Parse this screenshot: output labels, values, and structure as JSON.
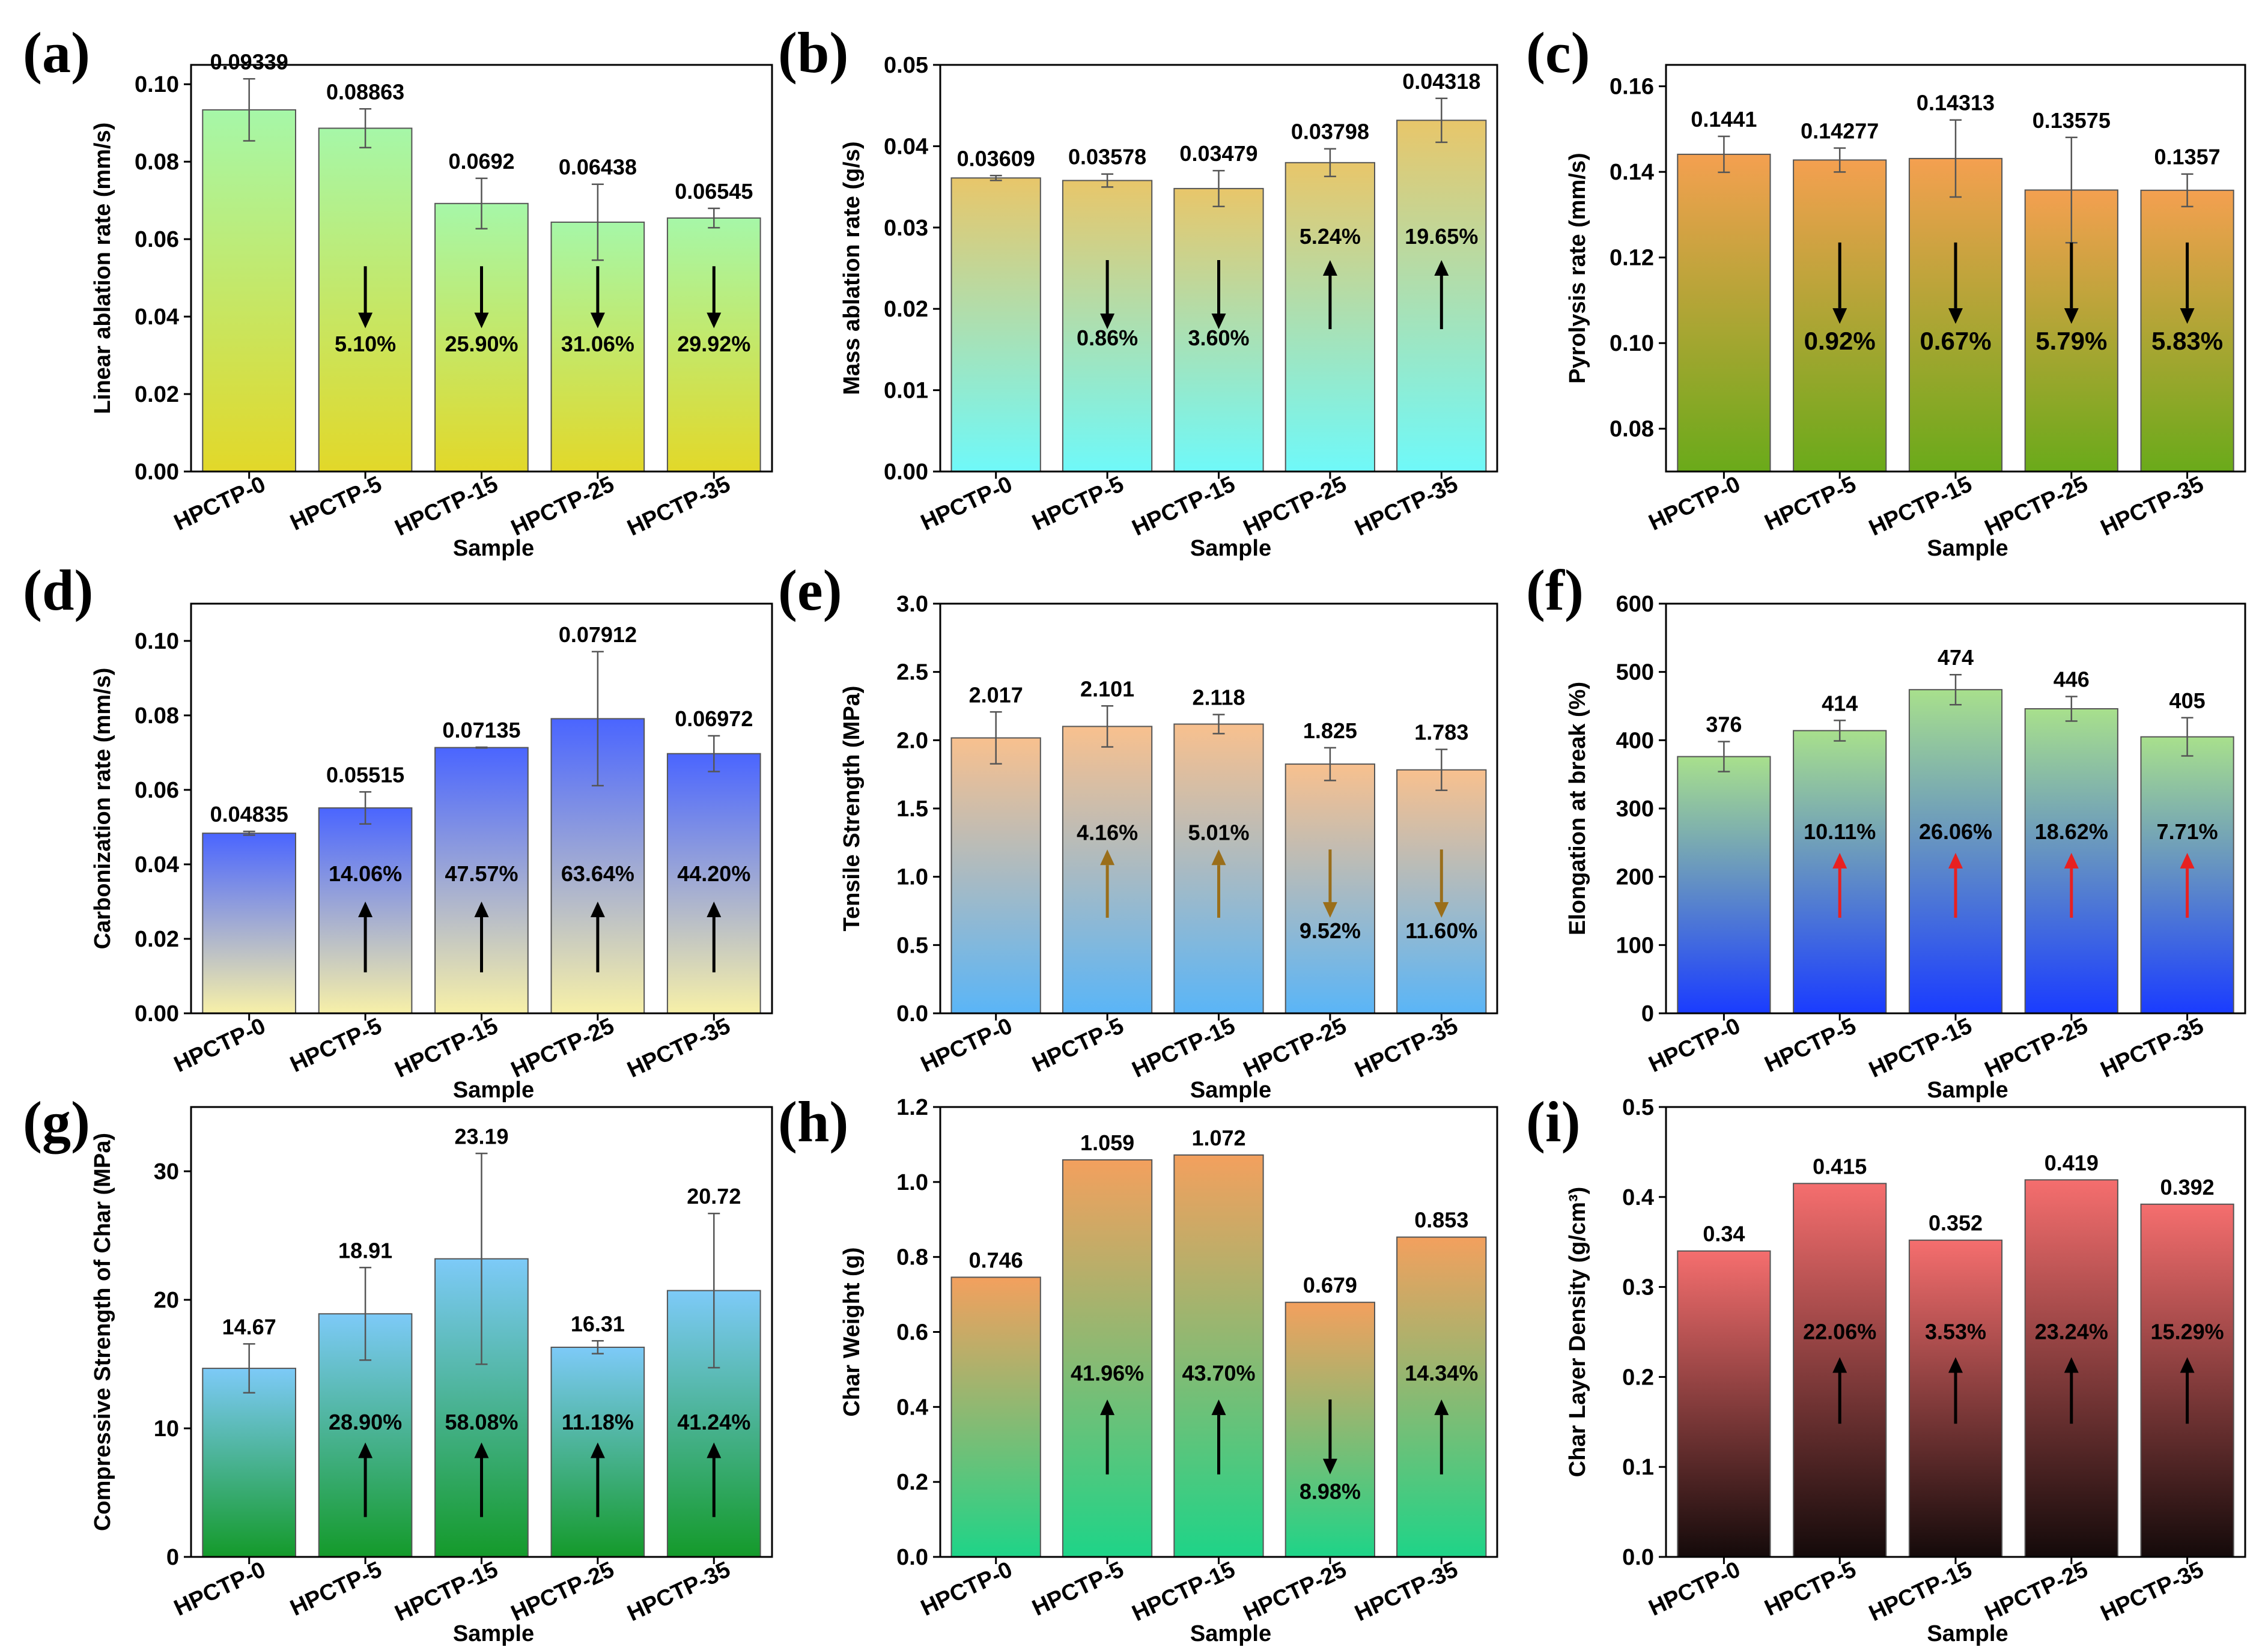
{
  "figure": {
    "title": ""
  },
  "colors": {
    "axis": "#000000",
    "bar_edge": "#555555",
    "errbar": "#555555",
    "arrow_black": "#000000",
    "arrow_gold": "#9a6e1a",
    "arrow_red": "#e82020"
  },
  "chart_data": [
    {
      "panel": "(a)",
      "type": "bar",
      "categories": [
        "HPCTP-0",
        "HPCTP-5",
        "HPCTP-15",
        "HPCTP-25",
        "HPCTP-35"
      ],
      "values": [
        0.09339,
        0.08863,
        0.0692,
        0.06438,
        0.06545
      ],
      "value_labels": [
        "0.09339",
        "0.08863",
        "0.0692",
        "0.06438",
        "0.06545"
      ],
      "errors": [
        0.008,
        0.005,
        0.0065,
        0.0098,
        0.0025
      ],
      "ylabel": "Linear ablation rate (mm/s)",
      "xlabel": "Sample",
      "ylim": [
        0,
        0.105
      ],
      "yticks": [
        0.0,
        0.02,
        0.04,
        0.06,
        0.08,
        0.1
      ],
      "ytick_labels": [
        "0.00",
        "0.02",
        "0.04",
        "0.06",
        "0.08",
        "0.10"
      ],
      "gradient": [
        "#a6f7a8",
        "#e2d829"
      ],
      "changes": [
        "",
        "5.10%",
        "25.90%",
        "31.06%",
        "29.92%"
      ],
      "directions": [
        "",
        "down",
        "down",
        "down",
        "down"
      ],
      "arrow_range": [
        0.053,
        0.037
      ],
      "pct_y": 0.031,
      "arrow_color": "black"
    },
    {
      "panel": "(b)",
      "type": "bar",
      "categories": [
        "HPCTP-0",
        "HPCTP-5",
        "HPCTP-15",
        "HPCTP-25",
        "HPCTP-35"
      ],
      "values": [
        0.03609,
        0.03578,
        0.03479,
        0.03798,
        0.04318
      ],
      "value_labels": [
        "0.03609",
        "0.03578",
        "0.03479",
        "0.03798",
        "0.04318"
      ],
      "errors": [
        0.0003,
        0.0008,
        0.0022,
        0.0017,
        0.0027
      ],
      "ylabel": "Mass ablation rate (g/s)",
      "xlabel": "Sample",
      "ylim": [
        0,
        0.05
      ],
      "yticks": [
        0.0,
        0.01,
        0.02,
        0.03,
        0.04,
        0.05
      ],
      "ytick_labels": [
        "0.00",
        "0.01",
        "0.02",
        "0.03",
        "0.04",
        "0.05"
      ],
      "gradient": [
        "#e8c66a",
        "#6ff9f9"
      ],
      "changes": [
        "",
        "0.86%",
        "3.60%",
        "5.24%",
        "19.65%"
      ],
      "directions": [
        "",
        "down",
        "down",
        "up",
        "up"
      ],
      "arrow_range": [
        0.026,
        0.0175
      ],
      "pct_y": 0.0155,
      "pct_y_up": 0.028,
      "arrow_color": "black"
    },
    {
      "panel": "(c)",
      "type": "bar",
      "categories": [
        "HPCTP-0",
        "HPCTP-5",
        "HPCTP-15",
        "HPCTP-25",
        "HPCTP-35"
      ],
      "values": [
        0.1441,
        0.14277,
        0.14313,
        0.13575,
        0.1357
      ],
      "value_labels": [
        "0.1441",
        "0.14277",
        "0.14313",
        "0.13575",
        "0.1357"
      ],
      "errors": [
        0.0042,
        0.0028,
        0.009,
        0.0123,
        0.0038
      ],
      "ylabel": "Pyrolysis rate (mm/s)",
      "xlabel": "Sample",
      "ylim": [
        0.07,
        0.165
      ],
      "yticks": [
        0.08,
        0.1,
        0.12,
        0.14,
        0.16
      ],
      "ytick_labels": [
        "0.08",
        "0.10",
        "0.12",
        "0.14",
        "0.16"
      ],
      "gradient": [
        "#f4a050",
        "#6aaa1a"
      ],
      "changes": [
        "",
        "0.92%",
        "0.67%",
        "5.79%",
        "5.83%"
      ],
      "directions": [
        "",
        "down",
        "down",
        "down",
        "down"
      ],
      "arrow_range": [
        0.1235,
        0.1045
      ],
      "pct_y": 0.0985,
      "arrow_color": "black"
    },
    {
      "panel": "(d)",
      "type": "bar",
      "categories": [
        "HPCTP-0",
        "HPCTP-5",
        "HPCTP-15",
        "HPCTP-25",
        "HPCTP-35"
      ],
      "values": [
        0.04835,
        0.05515,
        0.07135,
        0.07912,
        0.06972
      ],
      "value_labels": [
        "0.04835",
        "0.05515",
        "0.07135",
        "0.07912",
        "0.06972"
      ],
      "errors": [
        0.0005,
        0.0043,
        0.0001,
        0.018,
        0.0048
      ],
      "ylabel": "Carbonization rate (mm/s)",
      "xlabel": "Sample",
      "ylim": [
        0,
        0.11
      ],
      "yticks": [
        0.0,
        0.02,
        0.04,
        0.06,
        0.08,
        0.1
      ],
      "ytick_labels": [
        "0.00",
        "0.02",
        "0.04",
        "0.06",
        "0.08",
        "0.10"
      ],
      "gradient": [
        "#4a65ff",
        "#f7f0a8"
      ],
      "changes": [
        "",
        "14.06%",
        "47.57%",
        "63.64%",
        "44.20%"
      ],
      "directions": [
        "",
        "up",
        "up",
        "up",
        "up"
      ],
      "arrow_range": [
        0.011,
        0.03
      ],
      "pct_y": 0.0355,
      "arrow_color": "black"
    },
    {
      "panel": "(e)",
      "type": "bar",
      "categories": [
        "HPCTP-0",
        "HPCTP-5",
        "HPCTP-15",
        "HPCTP-25",
        "HPCTP-35"
      ],
      "values": [
        2.017,
        2.101,
        2.118,
        1.825,
        1.783
      ],
      "value_labels": [
        "2.017",
        "2.101",
        "2.118",
        "1.825",
        "1.783"
      ],
      "errors": [
        0.19,
        0.15,
        0.07,
        0.12,
        0.15
      ],
      "ylabel": "Tensile Strength (MPa)",
      "xlabel": "Sample",
      "ylim": [
        0,
        3.0
      ],
      "yticks": [
        0.0,
        0.5,
        1.0,
        1.5,
        2.0,
        2.5,
        3.0
      ],
      "ytick_labels": [
        "0.0",
        "0.5",
        "1.0",
        "1.5",
        "2.0",
        "2.5",
        "3.0"
      ],
      "gradient": [
        "#f8c08e",
        "#5ab5f7"
      ],
      "changes": [
        "",
        "4.16%",
        "5.01%",
        "9.52%",
        "11.60%"
      ],
      "directions": [
        "",
        "up",
        "up",
        "down",
        "down"
      ],
      "arrow_range": [
        0.7,
        1.2
      ],
      "pct_y": 1.27,
      "pct_y_down": 0.55,
      "arrow_color": "gold"
    },
    {
      "panel": "(f)",
      "type": "bar",
      "categories": [
        "HPCTP-0",
        "HPCTP-5",
        "HPCTP-15",
        "HPCTP-25",
        "HPCTP-35"
      ],
      "values": [
        376,
        414,
        474,
        446,
        405
      ],
      "value_labels": [
        "376",
        "414",
        "474",
        "446",
        "405"
      ],
      "errors": [
        22,
        15,
        22,
        18,
        28
      ],
      "ylabel": "Elongation at break (%)",
      "xlabel": "Sample",
      "ylim": [
        0,
        600
      ],
      "yticks": [
        0,
        100,
        200,
        300,
        400,
        500,
        600
      ],
      "ytick_labels": [
        "0",
        "100",
        "200",
        "300",
        "400",
        "500",
        "600"
      ],
      "gradient": [
        "#a8e08c",
        "#1a3cff"
      ],
      "changes": [
        "",
        "10.11%",
        "26.06%",
        "18.62%",
        "7.71%"
      ],
      "directions": [
        "",
        "up",
        "up",
        "up",
        "up"
      ],
      "arrow_range": [
        140,
        235
      ],
      "pct_y": 255,
      "arrow_color": "red"
    },
    {
      "panel": "(g)",
      "type": "bar",
      "categories": [
        "HPCTP-0",
        "HPCTP-5",
        "HPCTP-15",
        "HPCTP-25",
        "HPCTP-35"
      ],
      "values": [
        14.67,
        18.91,
        23.19,
        16.31,
        20.72
      ],
      "value_labels": [
        "14.67",
        "18.91",
        "23.19",
        "16.31",
        "20.72"
      ],
      "errors": [
        1.9,
        3.6,
        8.2,
        0.5,
        6.0
      ],
      "ylabel": "Compressive Strength of Char (MPa)",
      "xlabel": "Sample",
      "ylim": [
        0,
        35
      ],
      "yticks": [
        0,
        10,
        20,
        30
      ],
      "ytick_labels": [
        "0",
        "10",
        "20",
        "30"
      ],
      "gradient": [
        "#7dcaf8",
        "#149a2a"
      ],
      "changes": [
        "",
        "28.90%",
        "58.08%",
        "11.18%",
        "41.24%"
      ],
      "directions": [
        "",
        "up",
        "up",
        "up",
        "up"
      ],
      "arrow_range": [
        3.1,
        8.9
      ],
      "pct_y": 9.9,
      "arrow_color": "black"
    },
    {
      "panel": "(h)",
      "type": "bar",
      "categories": [
        "HPCTP-0",
        "HPCTP-5",
        "HPCTP-15",
        "HPCTP-25",
        "HPCTP-35"
      ],
      "values": [
        0.746,
        1.059,
        1.072,
        0.679,
        0.853
      ],
      "value_labels": [
        "0.746",
        "1.059",
        "1.072",
        "0.679",
        "0.853"
      ],
      "errors": [
        0,
        0,
        0,
        0,
        0
      ],
      "ylabel": "Char Weight (g)",
      "xlabel": "Sample",
      "ylim": [
        0,
        1.2
      ],
      "yticks": [
        0.0,
        0.2,
        0.4,
        0.6,
        0.8,
        1.0,
        1.2
      ],
      "ytick_labels": [
        "0.0",
        "0.2",
        "0.4",
        "0.6",
        "0.8",
        "1.0",
        "1.2"
      ],
      "gradient": [
        "#f3a05e",
        "#1ed488"
      ],
      "changes": [
        "",
        "41.96%",
        "43.70%",
        "8.98%",
        "14.34%"
      ],
      "directions": [
        "",
        "up",
        "up",
        "down",
        "up"
      ],
      "arrow_range": [
        0.22,
        0.42
      ],
      "pct_y": 0.47,
      "pct_y_down": 0.155,
      "arrow_color": "black"
    },
    {
      "panel": "(i)",
      "type": "bar",
      "categories": [
        "HPCTP-0",
        "HPCTP-5",
        "HPCTP-15",
        "HPCTP-25",
        "HPCTP-35"
      ],
      "values": [
        0.34,
        0.415,
        0.352,
        0.419,
        0.392
      ],
      "value_labels": [
        "0.34",
        "0.415",
        "0.352",
        "0.419",
        "0.392"
      ],
      "errors": [
        0,
        0,
        0,
        0,
        0
      ],
      "ylabel": "Char Layer Density (g/cm³)",
      "xlabel": "Sample",
      "ylim": [
        0,
        0.5
      ],
      "yticks": [
        0.0,
        0.1,
        0.2,
        0.3,
        0.4,
        0.5
      ],
      "ytick_labels": [
        "0.0",
        "0.1",
        "0.2",
        "0.3",
        "0.4",
        "0.5"
      ],
      "gradient": [
        "#f56e6e",
        "#140a0a"
      ],
      "changes": [
        "",
        "22.06%",
        "3.53%",
        "23.24%",
        "15.29%"
      ],
      "directions": [
        "",
        "up",
        "up",
        "up",
        "up"
      ],
      "arrow_range": [
        0.148,
        0.222
      ],
      "pct_y": 0.242,
      "arrow_color": "black"
    }
  ]
}
